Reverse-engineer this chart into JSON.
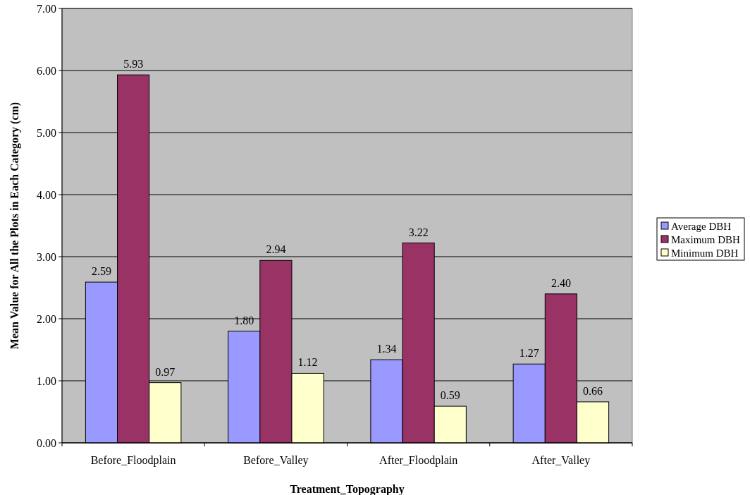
{
  "chart_data": {
    "type": "bar",
    "xlabel": "Treatment_Topography",
    "ylabel": "Mean Value for All the Plots in Each Category (cm)",
    "categories": [
      "Before_Floodplain",
      "Before_Valley",
      "After_Floodplain",
      "After_Valley"
    ],
    "series": [
      {
        "name": "Average DBH",
        "color": "#9999ff",
        "values": [
          2.59,
          1.8,
          1.34,
          1.27
        ],
        "value_labels": [
          "2.59",
          "1.80",
          "1.34",
          "1.27"
        ]
      },
      {
        "name": "Maximum DBH",
        "color": "#993366",
        "values": [
          5.93,
          2.94,
          3.22,
          2.4
        ],
        "value_labels": [
          "5.93",
          "2.94",
          "3.22",
          "2.40"
        ]
      },
      {
        "name": "Minimum DBH",
        "color": "#ffffcc",
        "values": [
          0.97,
          1.12,
          0.59,
          0.66
        ],
        "value_labels": [
          "0.97",
          "1.12",
          "0.59",
          "0.66"
        ]
      }
    ],
    "ylim": [
      0,
      7
    ],
    "yticks": [
      {
        "value": 0,
        "label": "0.00"
      },
      {
        "value": 1,
        "label": "1.00"
      },
      {
        "value": 2,
        "label": "2.00"
      },
      {
        "value": 3,
        "label": "3.00"
      },
      {
        "value": 4,
        "label": "4.00"
      },
      {
        "value": 5,
        "label": "5.00"
      },
      {
        "value": 6,
        "label": "6.00"
      },
      {
        "value": 7,
        "label": "7.00"
      }
    ],
    "grid": "y",
    "legend": "right"
  }
}
